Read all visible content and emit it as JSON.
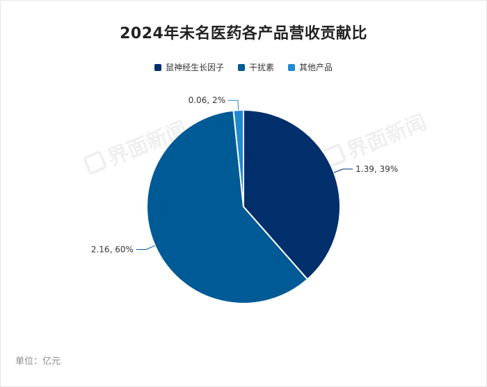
{
  "chart_data": {
    "type": "pie",
    "title": "2024年未名医药各产品营收贡献比",
    "legend_position": "top",
    "slices": [
      {
        "name": "鼠神经生长因子",
        "value": 1.39,
        "percent": 39,
        "label": "1.39, 39%",
        "color": "#002f6c"
      },
      {
        "name": "干扰素",
        "value": 2.16,
        "percent": 60,
        "label": "2.16, 60%",
        "color": "#005a96"
      },
      {
        "name": "其他产品",
        "value": 0.06,
        "percent": 2,
        "label": "0.06, 2%",
        "color": "#1f8ad0"
      }
    ],
    "unit_note": "单位：亿元"
  },
  "watermark": "界面新闻"
}
